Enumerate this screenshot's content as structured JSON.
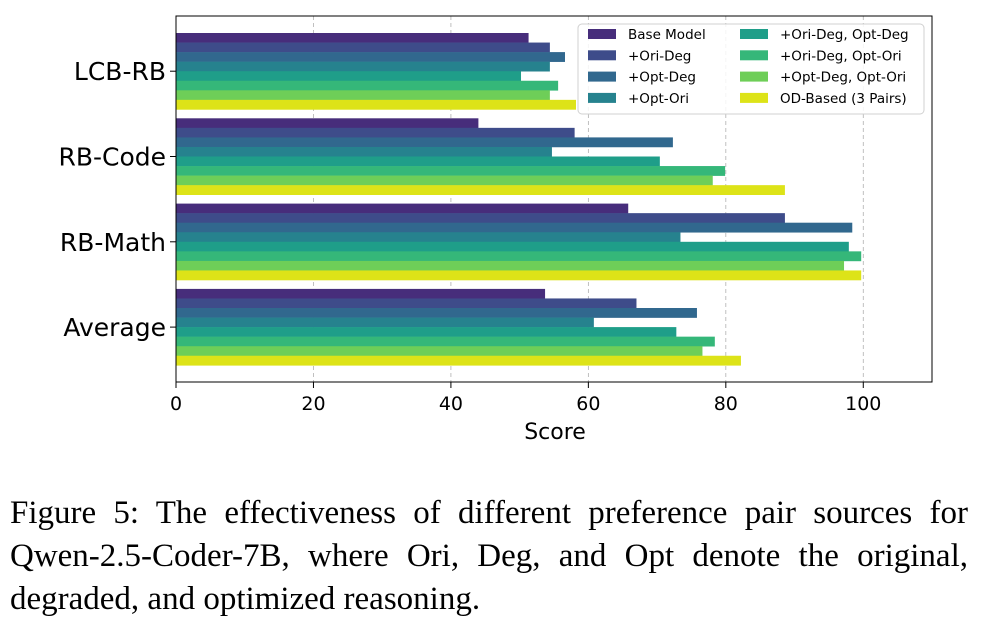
{
  "chart_data": {
    "type": "bar",
    "orientation": "horizontal",
    "categories": [
      "LCB-RB",
      "RB-Code",
      "RB-Math",
      "Average"
    ],
    "xlabel": "Score",
    "xlim": [
      0,
      110
    ],
    "xticks": [
      0,
      20,
      40,
      60,
      80,
      100
    ],
    "grid": "vertical dashed",
    "legend_position": "top-right",
    "series": [
      {
        "name": "Base Model",
        "color": "#472D7B",
        "values": [
          51.3,
          44.0,
          65.8,
          53.7
        ]
      },
      {
        "name": "+Ori-Deg",
        "color": "#3E4C8A",
        "values": [
          54.4,
          58.0,
          88.6,
          67.0
        ]
      },
      {
        "name": "+Opt-Deg",
        "color": "#31688E",
        "values": [
          56.6,
          72.3,
          98.4,
          75.8
        ]
      },
      {
        "name": "+Opt-Ori",
        "color": "#26828E",
        "values": [
          54.4,
          54.7,
          73.4,
          60.8
        ]
      },
      {
        "name": "+Ori-Deg, Opt-Deg",
        "color": "#1F9E89",
        "values": [
          50.2,
          70.4,
          97.9,
          72.8
        ]
      },
      {
        "name": "+Ori-Deg, Opt-Ori",
        "color": "#35B779",
        "values": [
          55.6,
          79.9,
          99.7,
          78.4
        ]
      },
      {
        "name": "+Opt-Deg, Opt-Ori",
        "color": "#6ECE58",
        "values": [
          54.4,
          78.1,
          97.2,
          76.6
        ]
      },
      {
        "name": "OD-Based (3 Pairs)",
        "color": "#DDE318",
        "values": [
          58.2,
          88.6,
          99.7,
          82.2
        ]
      }
    ]
  },
  "caption": "Figure 5: The effectiveness of different preference pair sources for Qwen-2.5-Coder-7B, where Ori, Deg, and Opt denote the original, degraded, and optimized reasoning."
}
